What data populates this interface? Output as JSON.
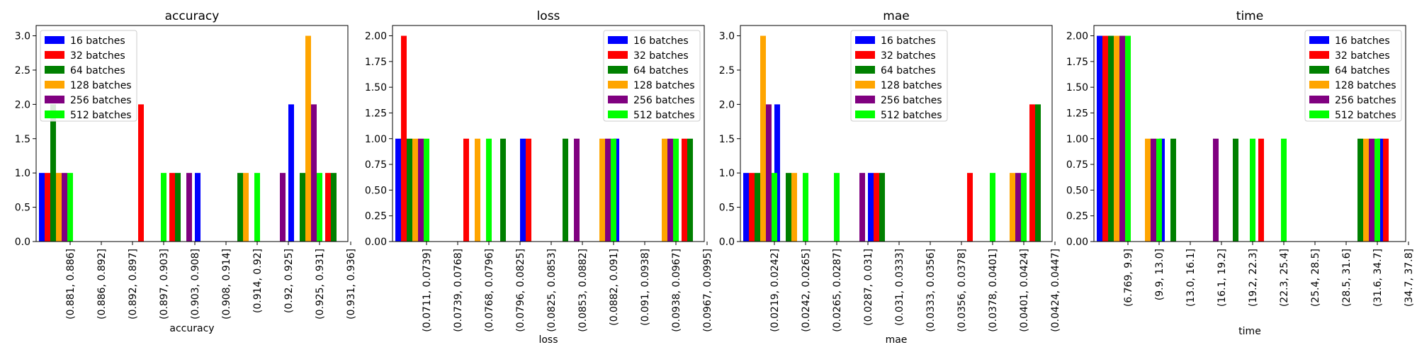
{
  "series_names": [
    "16 batches",
    "32 batches",
    "64 batches",
    "128 batches",
    "256 batches",
    "512 batches"
  ],
  "series_colors": [
    "#0000ff",
    "#ff0000",
    "#008000",
    "#ffa500",
    "#800080",
    "#00ff00"
  ],
  "chart_data": [
    {
      "type": "bar",
      "title": "accuracy",
      "xlabel": "accuracy",
      "ylabel": "",
      "ylim": [
        0,
        3.15
      ],
      "yticks": [
        "0.0",
        "0.5",
        "1.0",
        "1.5",
        "2.0",
        "2.5",
        "3.0"
      ],
      "legend_position": "top-left",
      "grid": false,
      "categories": [
        "(0.881, 0.886]",
        "(0.886, 0.892]",
        "(0.892, 0.897]",
        "(0.897, 0.903]",
        "(0.903, 0.908]",
        "(0.908, 0.914]",
        "(0.914, 0.92]",
        "(0.92, 0.925]",
        "(0.925, 0.931]",
        "(0.931, 0.936]"
      ],
      "series": [
        {
          "name": "16 batches",
          "values": [
            1,
            0,
            0,
            0,
            0,
            1,
            0,
            0,
            2,
            0
          ]
        },
        {
          "name": "32 batches",
          "values": [
            1,
            0,
            0,
            2,
            1,
            0,
            0,
            0,
            0,
            1
          ]
        },
        {
          "name": "64 batches",
          "values": [
            2,
            0,
            0,
            0,
            1,
            0,
            1,
            0,
            1,
            1
          ]
        },
        {
          "name": "128 batches",
          "values": [
            1,
            0,
            0,
            0,
            0,
            0,
            1,
            0,
            3,
            0
          ]
        },
        {
          "name": "256 batches",
          "values": [
            1,
            0,
            0,
            0,
            1,
            0,
            0,
            1,
            2,
            0
          ]
        },
        {
          "name": "512 batches",
          "values": [
            1,
            0,
            0,
            1,
            0,
            0,
            1,
            0,
            1,
            0
          ]
        }
      ]
    },
    {
      "type": "bar",
      "title": "loss",
      "xlabel": "loss",
      "ylabel": "",
      "ylim": [
        0,
        2.1
      ],
      "yticks": [
        "0.00",
        "0.25",
        "0.50",
        "0.75",
        "1.00",
        "1.25",
        "1.50",
        "1.75",
        "2.00"
      ],
      "legend_position": "top-right",
      "grid": false,
      "categories": [
        "(0.0711, 0.0739]",
        "(0.0739, 0.0768]",
        "(0.0768, 0.0796]",
        "(0.0796, 0.0825]",
        "(0.0825, 0.0853]",
        "(0.0853, 0.0882]",
        "(0.0882, 0.091]",
        "(0.091, 0.0938]",
        "(0.0938, 0.0967]",
        "(0.0967, 0.0995]"
      ],
      "series": [
        {
          "name": "16 batches",
          "values": [
            1,
            0,
            0,
            0,
            1,
            0,
            0,
            1,
            0,
            0
          ]
        },
        {
          "name": "32 batches",
          "values": [
            2,
            0,
            1,
            0,
            1,
            0,
            0,
            0,
            0,
            1
          ]
        },
        {
          "name": "64 batches",
          "values": [
            1,
            0,
            0,
            1,
            0,
            1,
            0,
            0,
            0,
            1
          ]
        },
        {
          "name": "128 batches",
          "values": [
            1,
            0,
            1,
            0,
            0,
            0,
            1,
            0,
            1,
            0
          ]
        },
        {
          "name": "256 batches",
          "values": [
            1,
            0,
            0,
            0,
            0,
            1,
            1,
            0,
            1,
            0
          ]
        },
        {
          "name": "512 batches",
          "values": [
            1,
            0,
            1,
            0,
            0,
            0,
            1,
            0,
            1,
            0
          ]
        }
      ]
    },
    {
      "type": "bar",
      "title": "mae",
      "xlabel": "mae",
      "ylabel": "",
      "ylim": [
        0,
        3.15
      ],
      "yticks": [
        "0.0",
        "0.5",
        "1.0",
        "1.5",
        "2.0",
        "2.5",
        "3.0"
      ],
      "legend_position": "top-center",
      "grid": false,
      "categories": [
        "(0.0219, 0.0242]",
        "(0.0242, 0.0265]",
        "(0.0265, 0.0287]",
        "(0.0287, 0.031]",
        "(0.031, 0.0333]",
        "(0.0333, 0.0356]",
        "(0.0356, 0.0378]",
        "(0.0378, 0.0401]",
        "(0.0401, 0.0424]",
        "(0.0424, 0.0447]"
      ],
      "series": [
        {
          "name": "16 batches",
          "values": [
            1,
            2,
            0,
            0,
            1,
            0,
            0,
            0,
            0,
            0
          ]
        },
        {
          "name": "32 batches",
          "values": [
            1,
            0,
            0,
            0,
            1,
            0,
            0,
            1,
            0,
            2
          ]
        },
        {
          "name": "64 batches",
          "values": [
            1,
            1,
            0,
            0,
            1,
            0,
            0,
            0,
            0,
            2
          ]
        },
        {
          "name": "128 batches",
          "values": [
            3,
            1,
            0,
            0,
            0,
            0,
            0,
            0,
            1,
            0
          ]
        },
        {
          "name": "256 batches",
          "values": [
            2,
            0,
            0,
            1,
            0,
            0,
            0,
            0,
            1,
            0
          ]
        },
        {
          "name": "512 batches",
          "values": [
            1,
            1,
            1,
            0,
            0,
            0,
            0,
            1,
            1,
            0
          ]
        }
      ]
    },
    {
      "type": "bar",
      "title": "time",
      "xlabel": "time",
      "ylabel": "",
      "ylim": [
        0,
        2.1
      ],
      "yticks": [
        "0.00",
        "0.25",
        "0.50",
        "0.75",
        "1.00",
        "1.25",
        "1.50",
        "1.75",
        "2.00"
      ],
      "legend_position": "top-right",
      "grid": false,
      "categories": [
        "(6.769, 9.9]",
        "(9.9, 13.0]",
        "(13.0, 16.1]",
        "(16.1, 19.2]",
        "(19.2, 22.3]",
        "(22.3, 25.4]",
        "(25.4, 28.5]",
        "(28.5, 31.6]",
        "(31.6, 34.7]",
        "(34.7, 37.8]"
      ],
      "series": [
        {
          "name": "16 batches",
          "values": [
            2,
            0,
            1,
            0,
            0,
            0,
            0,
            0,
            0,
            1
          ]
        },
        {
          "name": "32 batches",
          "values": [
            2,
            0,
            0,
            0,
            0,
            1,
            0,
            0,
            0,
            1
          ]
        },
        {
          "name": "64 batches",
          "values": [
            2,
            0,
            1,
            0,
            1,
            0,
            0,
            0,
            1,
            0
          ]
        },
        {
          "name": "128 batches",
          "values": [
            2,
            1,
            0,
            0,
            0,
            0,
            0,
            0,
            1,
            0
          ]
        },
        {
          "name": "256 batches",
          "values": [
            2,
            1,
            0,
            1,
            0,
            0,
            0,
            0,
            1,
            0
          ]
        },
        {
          "name": "512 batches",
          "values": [
            2,
            1,
            0,
            0,
            1,
            1,
            0,
            0,
            1,
            0
          ]
        }
      ]
    }
  ]
}
